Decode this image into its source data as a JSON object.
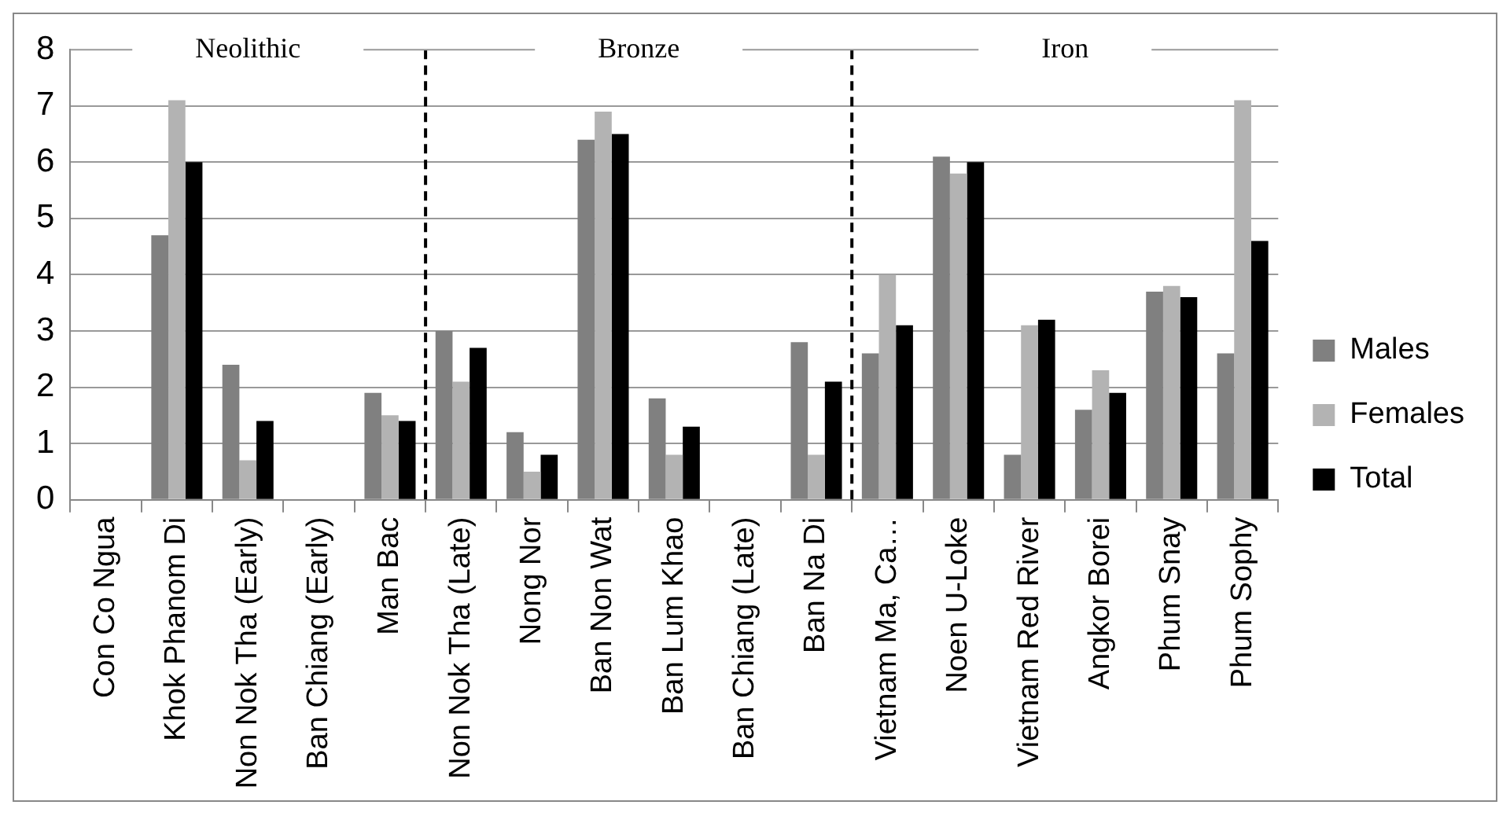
{
  "chart_data": {
    "type": "bar",
    "categories": [
      "Con Co Ngua",
      "Khok Phanom Di",
      "Non Nok Tha (Early)",
      "Ban Chiang (Early)",
      "Man Bac",
      "Non Nok Tha (Late)",
      "Nong Nor",
      "Ban Non Wat",
      "Ban Lum Khao",
      "Ban Chiang (Late)",
      "Ban Na Di",
      "Vietnam Ma, Ca…",
      "Noen U-Loke",
      "Vietnam Red River",
      "Angkor Borei",
      "Phum Snay",
      "Phum Sophy"
    ],
    "series": [
      {
        "name": "Males",
        "color": "#808080",
        "values": [
          null,
          4.7,
          2.4,
          null,
          1.9,
          3.0,
          1.2,
          6.4,
          1.8,
          null,
          2.8,
          2.6,
          6.1,
          0.8,
          1.6,
          3.7,
          2.6
        ]
      },
      {
        "name": "Females",
        "color": "#b3b3b3",
        "values": [
          null,
          7.1,
          0.7,
          null,
          1.5,
          2.1,
          0.5,
          6.9,
          0.8,
          null,
          0.8,
          4.0,
          5.8,
          3.1,
          2.3,
          3.8,
          7.1
        ]
      },
      {
        "name": "Total",
        "color": "#000000",
        "values": [
          null,
          6.0,
          1.4,
          null,
          1.4,
          2.7,
          0.8,
          6.5,
          1.3,
          null,
          2.1,
          3.1,
          6.0,
          3.2,
          1.9,
          3.6,
          4.6
        ]
      }
    ],
    "ylim": [
      0,
      8
    ],
    "yticks": [
      0,
      1,
      2,
      3,
      4,
      5,
      6,
      7,
      8
    ],
    "grid": "y",
    "legend": "right",
    "annotations": [
      "Neolithic",
      "Bronze",
      "Iron"
    ]
  }
}
